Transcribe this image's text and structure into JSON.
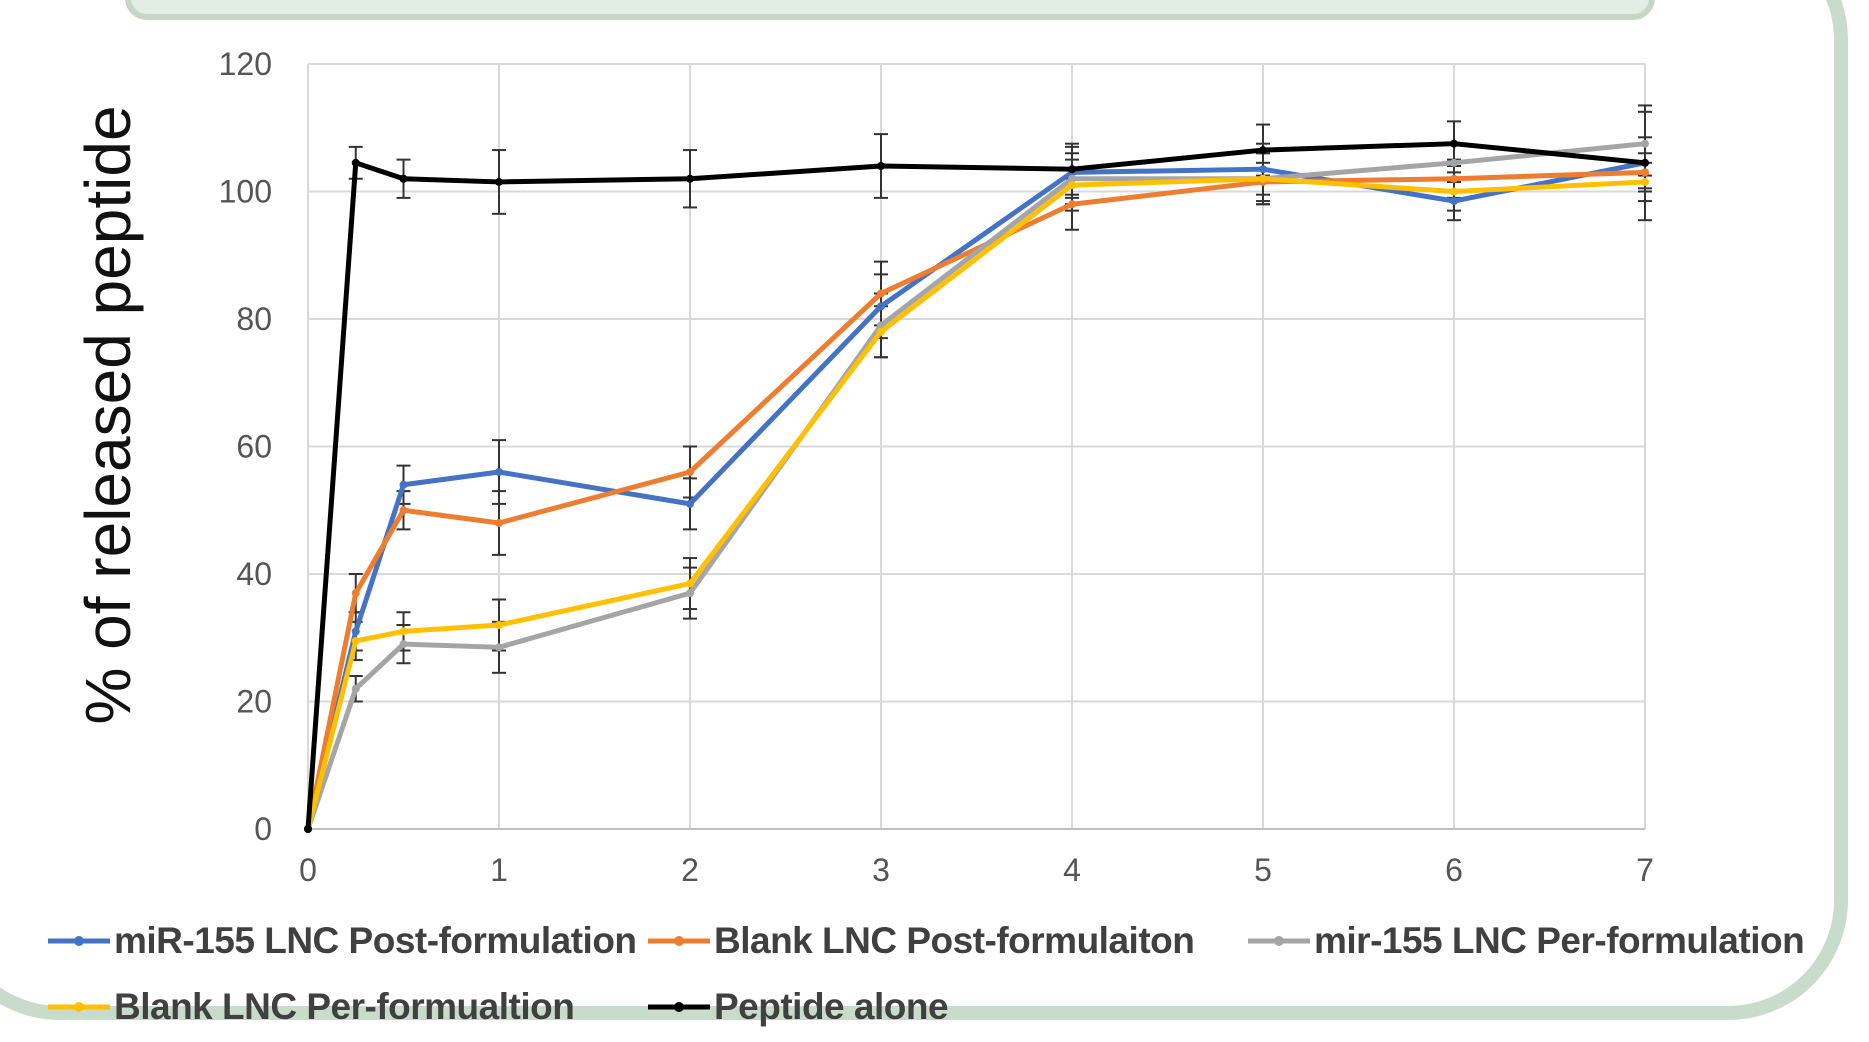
{
  "chart_data": {
    "type": "line",
    "title": "",
    "xlabel": "",
    "ylabel": "% of released peptide",
    "xlim": [
      0,
      7
    ],
    "ylim": [
      0,
      120
    ],
    "x_ticks": [
      0,
      1,
      2,
      3,
      4,
      5,
      6,
      7
    ],
    "y_ticks": [
      0,
      20,
      40,
      60,
      80,
      100,
      120
    ],
    "grid": true,
    "legend_position": "bottom",
    "series": [
      {
        "name": "miR-155 LNC Post-formulation",
        "color": "#4472c4",
        "x": [
          0,
          0.25,
          0.5,
          1,
          2,
          3,
          4,
          5,
          6,
          7
        ],
        "y": [
          0,
          31,
          54,
          56,
          51,
          82,
          103,
          103.5,
          98.5,
          104.5
        ],
        "err": [
          0,
          3,
          3,
          5,
          4,
          5,
          4,
          4,
          3,
          4
        ]
      },
      {
        "name": "Blank LNC Post-formulaiton",
        "color": "#ed7d31",
        "x": [
          0,
          0.25,
          0.5,
          1,
          2,
          3,
          4,
          5,
          6,
          7
        ],
        "y": [
          0,
          37,
          50,
          48,
          56,
          84,
          98,
          101.5,
          102,
          103
        ],
        "err": [
          0,
          3,
          3,
          5,
          4,
          5,
          4,
          3,
          3,
          3
        ]
      },
      {
        "name": "mir-155 LNC Per-formulation",
        "color": "#a5a5a5",
        "x": [
          0,
          0.25,
          0.5,
          1,
          2,
          3,
          4,
          5,
          6,
          7
        ],
        "y": [
          0,
          22,
          29,
          28.5,
          37,
          79,
          102,
          102,
          104.5,
          107.5
        ],
        "err": [
          0,
          2,
          3,
          4,
          4,
          5,
          4,
          4,
          3,
          5
        ]
      },
      {
        "name": "Blank LNC Per-formualtion",
        "color": "#ffc000",
        "x": [
          0,
          0.25,
          0.5,
          1,
          2,
          3,
          4,
          5,
          6,
          7
        ],
        "y": [
          0,
          29.5,
          31,
          32,
          38.5,
          78,
          101,
          102,
          100,
          101.5
        ],
        "err": [
          0,
          3,
          3,
          4,
          4,
          4,
          4,
          4,
          3,
          3
        ]
      },
      {
        "name": "Peptide alone",
        "color": "#000000",
        "x": [
          0,
          0.25,
          0.5,
          1,
          2,
          3,
          4,
          5,
          6,
          7
        ],
        "y": [
          0,
          104.5,
          102,
          101.5,
          102,
          104,
          103.5,
          106.5,
          107.5,
          104.5
        ],
        "err": [
          0,
          2.5,
          3,
          5,
          4.5,
          5,
          4,
          4,
          3.5,
          9
        ]
      }
    ]
  }
}
